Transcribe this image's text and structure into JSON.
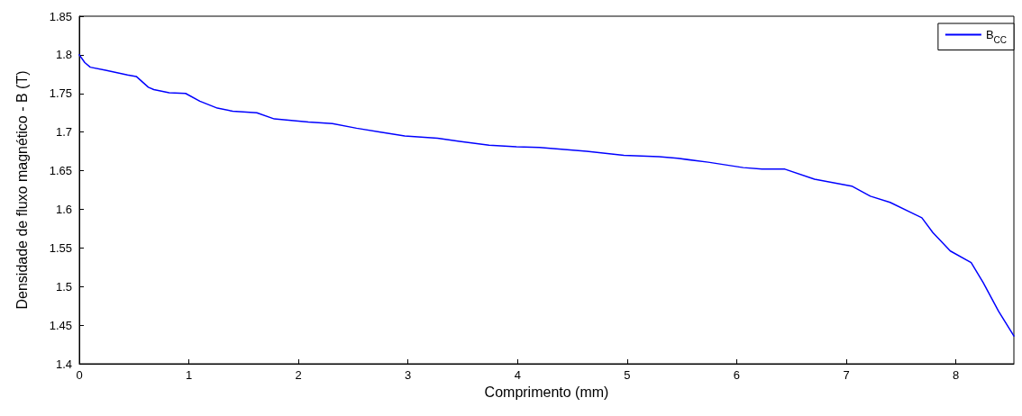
{
  "chart_data": {
    "type": "line",
    "xlabel": "Comprimento (mm)",
    "ylabel": "Densidade de fluxo magnético - B (T)",
    "xlim": [
      0,
      8.53
    ],
    "xticks": [
      0,
      1,
      2,
      3,
      4,
      5,
      6,
      7,
      8
    ],
    "ylim": [
      1.4,
      1.85
    ],
    "yticks": [
      1.4,
      1.45,
      1.5,
      1.55,
      1.6,
      1.65,
      1.7,
      1.75,
      1.8,
      1.85
    ],
    "grid": false,
    "legend": "top right",
    "marker": "none",
    "line_style": "solid",
    "series": [
      {
        "name": "B$_{CC}$",
        "color": "#0000ff",
        "x": [
          0,
          0.05,
          0.1,
          0.24,
          0.44,
          0.52,
          0.63,
          0.68,
          0.82,
          0.97,
          1.1,
          1.26,
          1.4,
          1.62,
          1.78,
          2.09,
          2.31,
          2.53,
          2.75,
          2.97,
          3.27,
          3.47,
          3.74,
          3.99,
          4.2,
          4.3,
          4.63,
          4.97,
          5.29,
          5.46,
          5.74,
          6.06,
          6.23,
          6.44,
          6.71,
          7.05,
          7.22,
          7.4,
          7.69,
          7.79,
          7.95,
          8.14,
          8.25,
          8.39,
          8.53
        ],
        "values": [
          1.8,
          1.79,
          1.784,
          1.78,
          1.774,
          1.772,
          1.758,
          1.755,
          1.751,
          1.75,
          1.74,
          1.731,
          1.727,
          1.725,
          1.717,
          1.713,
          1.711,
          1.705,
          1.7,
          1.695,
          1.692,
          1.688,
          1.683,
          1.681,
          1.68,
          1.679,
          1.675,
          1.67,
          1.668,
          1.666,
          1.661,
          1.654,
          1.652,
          1.652,
          1.639,
          1.63,
          1.617,
          1.609,
          1.589,
          1.57,
          1.546,
          1.531,
          1.505,
          1.468,
          1.436
        ]
      }
    ]
  }
}
